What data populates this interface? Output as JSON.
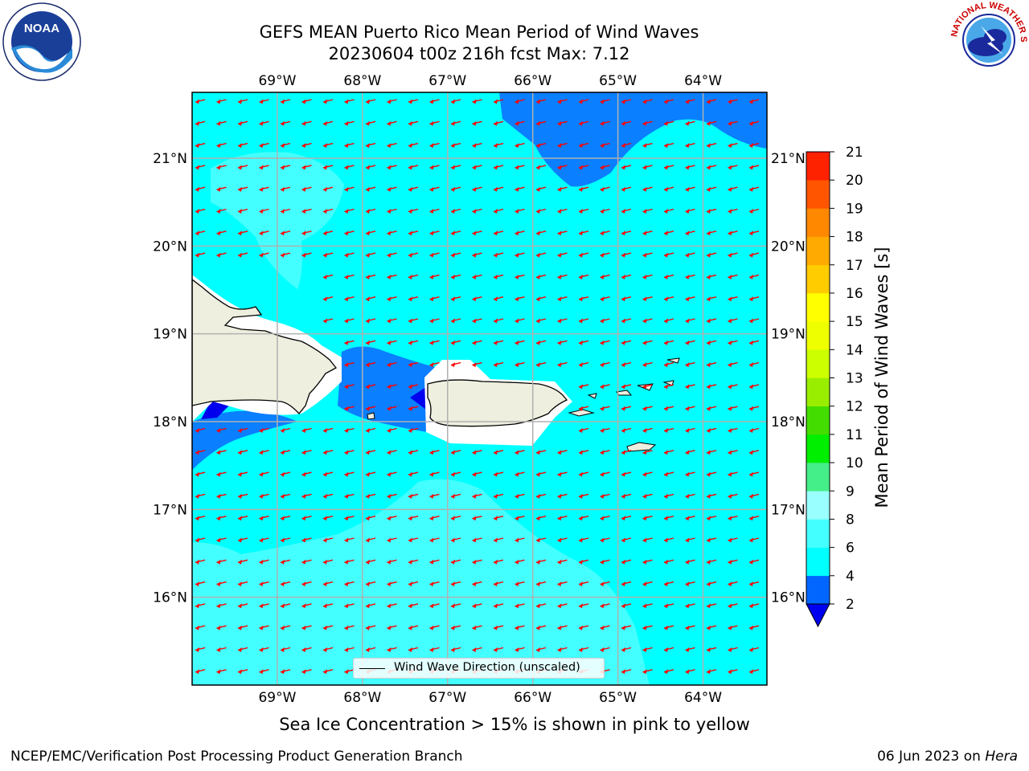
{
  "title": {
    "line1": "GEFS MEAN Puerto Rico Mean Period of Wind Waves",
    "line2": "20230604 t00z 216h fcst   Max: 7.12"
  },
  "logos": {
    "left": {
      "icon": "noaa-logo",
      "text": "NOAA"
    },
    "right": {
      "icon": "national-weather-service-logo",
      "text": "NATIONAL WEATHER SERVICE"
    }
  },
  "map": {
    "lon_range": [
      -70.0,
      -63.25
    ],
    "lat_range": [
      15.0,
      21.75
    ],
    "lon_ticks": [
      "69°W",
      "68°W",
      "67°W",
      "66°W",
      "65°W",
      "64°W"
    ],
    "lon_tick_values": [
      -69,
      -68,
      -67,
      -66,
      -65,
      -64
    ],
    "lat_ticks": [
      "21°N",
      "20°N",
      "19°N",
      "18°N",
      "17°N",
      "16°N"
    ],
    "lat_tick_values": [
      21,
      20,
      19,
      18,
      17,
      16
    ],
    "gridlines": true,
    "arrow_color": "#ff0000",
    "land_color": "#efefdf",
    "coast_color": "#000000",
    "arrow_direction": "toward west-southwest"
  },
  "legend": {
    "label": "Wind Wave Direction (unscaled)",
    "placement": "lower-center"
  },
  "colorbar": {
    "label": "Mean Period of Wind Waves [s]",
    "ticks": [
      "2",
      "4",
      "6",
      "8",
      "9",
      "10",
      "11",
      "12",
      "13",
      "14",
      "15",
      "16",
      "17",
      "18",
      "19",
      "20",
      "21"
    ],
    "colors": [
      "#0066ff",
      "#00ffff",
      "#44ffff",
      "#99ffff",
      "#44ee88",
      "#00ee00",
      "#44dd00",
      "#99ee00",
      "#ccff00",
      "#eeff00",
      "#ffff00",
      "#ffcc00",
      "#ffaa00",
      "#ff8800",
      "#ff5500",
      "#ff2200"
    ],
    "under_color": "#0000ee",
    "max_color": "#ff0000"
  },
  "caption": "Sea Ice Concentration > 15% is shown in pink to yellow",
  "footer": {
    "left": "NCEP/EMC/Verification Post Processing Product Generation Branch",
    "right_prefix": "06 Jun 2023 on",
    "right_italic": "Hera"
  }
}
